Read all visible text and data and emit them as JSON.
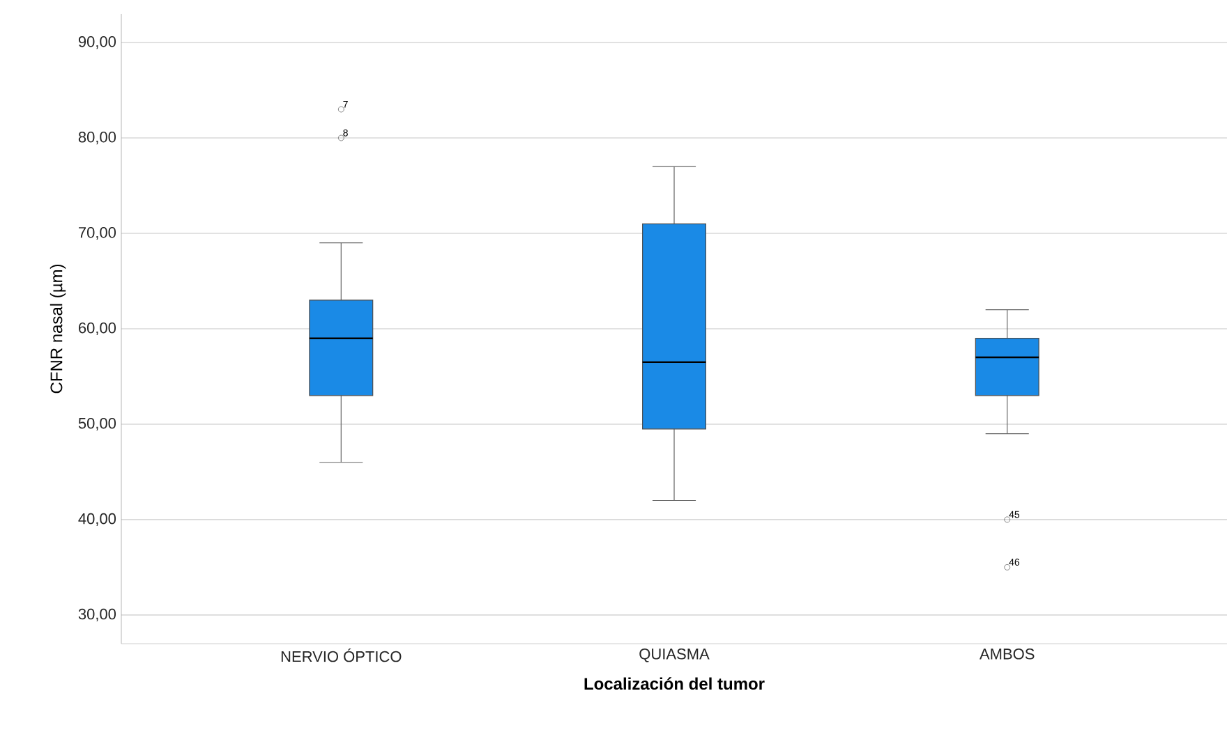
{
  "chart_data": {
    "type": "box",
    "xlabel": "Localización del tumor",
    "ylabel": "CFNR nasal (µm)",
    "categories": [
      "NERVIO ÓPTICO",
      "QUIASMA",
      "AMBOS"
    ],
    "color": "#1a8ae6",
    "boxes": [
      {
        "low": 46,
        "q1": 53,
        "median": 59,
        "q3": 63,
        "high": 69,
        "outliers": [
          83,
          80
        ]
      },
      {
        "low": 42,
        "q1": 49.5,
        "median": 56.5,
        "q3": 71,
        "high": 77
      },
      {
        "low": 49,
        "q1": 53,
        "median": 57,
        "q3": 59,
        "high": 62,
        "outliers": [
          40,
          35
        ]
      }
    ],
    "ylim": [
      27,
      93
    ],
    "yticks": [
      {
        "value": 30,
        "label": "30,00"
      },
      {
        "value": 40,
        "label": "40,00"
      },
      {
        "value": 50,
        "label": "50,00"
      },
      {
        "value": 60,
        "label": "60,00"
      },
      {
        "value": 70,
        "label": "70,00"
      },
      {
        "value": 80,
        "label": "80,00"
      },
      {
        "value": 90,
        "label": "90,00"
      }
    ],
    "grid": "y",
    "annotations": [
      "7",
      "8",
      "45",
      "46"
    ]
  }
}
